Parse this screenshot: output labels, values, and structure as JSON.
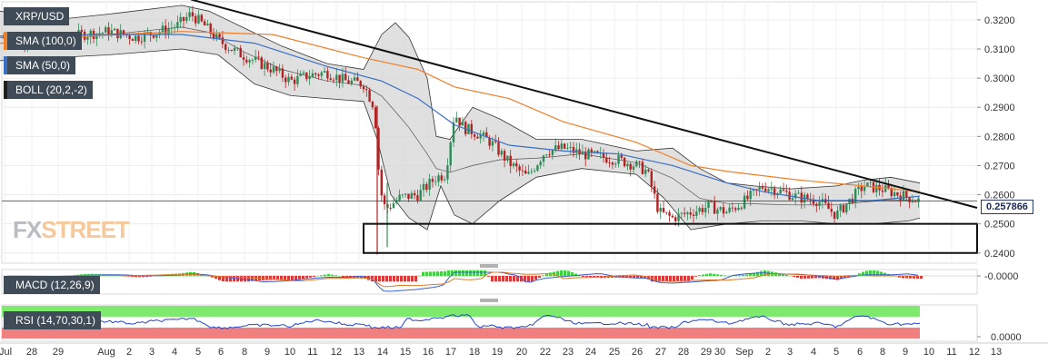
{
  "legends": {
    "symbol": "XRP/USD",
    "sma100": "SMA (100,0)",
    "sma50": "SMA (50,0)",
    "boll": "BOLL (20,2,-2)",
    "macd": "MACD (12,26,9)",
    "rsi": "RSI (14,70,30,1)"
  },
  "watermark": {
    "fx": "FX",
    "street": "STREET"
  },
  "last_price_label": "0.257866",
  "colors": {
    "sma100": "#f07f2a",
    "sma50": "#3b6fc4",
    "bull": "#2e8b57",
    "bear": "#b22222",
    "band_fill": "#d5d5d5",
    "rsi_over": "#7dea6d",
    "rsi_under": "#f08080"
  },
  "chart_data": {
    "type": "candlestick",
    "title": "XRP/USD",
    "ylim": [
      0.2365,
      0.3262
    ],
    "y_ticks": [
      "0.3200",
      "0.3100",
      "0.3000",
      "0.2900",
      "0.2800",
      "0.2700",
      "0.2600",
      "0.2500",
      "0.2400"
    ],
    "x_ticks": [
      "Jul",
      "28",
      "29",
      "Aug",
      "2",
      "3",
      "4",
      "5",
      "6",
      "8",
      "9",
      "10",
      "11",
      "12",
      "13",
      "14",
      "15",
      "16",
      "17",
      "18",
      "19",
      "20",
      "22",
      "23",
      "24",
      "25",
      "26",
      "27",
      "28",
      "29",
      "30",
      "Sep",
      "2",
      "3",
      "4",
      "5",
      "6",
      "8",
      "9",
      "10",
      "11",
      "12",
      "13"
    ],
    "last_price": 0.257866,
    "price_path": [
      [
        0,
        0.314
      ],
      [
        30,
        0.313
      ],
      [
        60,
        0.312
      ],
      [
        90,
        0.315
      ],
      [
        120,
        0.316
      ],
      [
        150,
        0.314
      ],
      [
        175,
        0.316
      ],
      [
        195,
        0.318
      ],
      [
        210,
        0.322
      ],
      [
        225,
        0.318
      ],
      [
        240,
        0.313
      ],
      [
        260,
        0.309
      ],
      [
        280,
        0.306
      ],
      [
        300,
        0.303
      ],
      [
        320,
        0.299
      ],
      [
        340,
        0.301
      ],
      [
        360,
        0.302
      ],
      [
        380,
        0.299
      ],
      [
        400,
        0.298
      ],
      [
        412,
        0.29
      ],
      [
        418,
        0.262
      ],
      [
        424,
        0.255
      ],
      [
        440,
        0.259
      ],
      [
        460,
        0.26
      ],
      [
        480,
        0.266
      ],
      [
        490,
        0.267
      ],
      [
        500,
        0.288
      ],
      [
        510,
        0.283
      ],
      [
        525,
        0.281
      ],
      [
        540,
        0.278
      ],
      [
        560,
        0.271
      ],
      [
        580,
        0.266
      ],
      [
        600,
        0.275
      ],
      [
        620,
        0.276
      ],
      [
        640,
        0.274
      ],
      [
        660,
        0.273
      ],
      [
        680,
        0.272
      ],
      [
        700,
        0.27
      ],
      [
        712,
        0.268
      ],
      [
        725,
        0.254
      ],
      [
        740,
        0.252
      ],
      [
        760,
        0.254
      ],
      [
        780,
        0.256
      ],
      [
        800,
        0.254
      ],
      [
        820,
        0.258
      ],
      [
        840,
        0.263
      ],
      [
        860,
        0.261
      ],
      [
        880,
        0.259
      ],
      [
        900,
        0.258
      ],
      [
        920,
        0.253
      ],
      [
        935,
        0.258
      ],
      [
        950,
        0.263
      ],
      [
        970,
        0.262
      ],
      [
        990,
        0.26
      ],
      [
        1012,
        0.2579
      ]
    ],
    "sma100_path": [
      [
        0,
        0.312
      ],
      [
        100,
        0.3145
      ],
      [
        200,
        0.316
      ],
      [
        300,
        0.315
      ],
      [
        400,
        0.307
      ],
      [
        460,
        0.303
      ],
      [
        500,
        0.297
      ],
      [
        560,
        0.293
      ],
      [
        620,
        0.285
      ],
      [
        700,
        0.278
      ],
      [
        760,
        0.27
      ],
      [
        800,
        0.268
      ],
      [
        880,
        0.265
      ],
      [
        950,
        0.263
      ],
      [
        1012,
        0.261
      ]
    ],
    "sma50_path": [
      [
        0,
        0.314
      ],
      [
        100,
        0.315
      ],
      [
        200,
        0.315
      ],
      [
        280,
        0.312
      ],
      [
        360,
        0.304
      ],
      [
        420,
        0.299
      ],
      [
        460,
        0.293
      ],
      [
        500,
        0.284
      ],
      [
        560,
        0.277
      ],
      [
        620,
        0.275
      ],
      [
        680,
        0.274
      ],
      [
        740,
        0.27
      ],
      [
        800,
        0.264
      ],
      [
        840,
        0.261
      ],
      [
        900,
        0.258
      ],
      [
        960,
        0.258
      ],
      [
        1012,
        0.2595
      ]
    ],
    "boll_upper": [
      [
        0,
        0.323
      ],
      [
        60,
        0.32
      ],
      [
        120,
        0.322
      ],
      [
        200,
        0.325
      ],
      [
        230,
        0.323
      ],
      [
        270,
        0.317
      ],
      [
        310,
        0.311
      ],
      [
        360,
        0.305
      ],
      [
        400,
        0.303
      ],
      [
        420,
        0.315
      ],
      [
        435,
        0.319
      ],
      [
        450,
        0.314
      ],
      [
        470,
        0.3
      ],
      [
        480,
        0.28
      ],
      [
        495,
        0.279
      ],
      [
        520,
        0.29
      ],
      [
        550,
        0.286
      ],
      [
        590,
        0.279
      ],
      [
        640,
        0.279
      ],
      [
        700,
        0.275
      ],
      [
        740,
        0.276
      ],
      [
        770,
        0.269
      ],
      [
        800,
        0.264
      ],
      [
        830,
        0.263
      ],
      [
        870,
        0.262
      ],
      [
        920,
        0.263
      ],
      [
        950,
        0.265
      ],
      [
        980,
        0.266
      ],
      [
        1012,
        0.264
      ]
    ],
    "boll_lower": [
      [
        0,
        0.306
      ],
      [
        60,
        0.307
      ],
      [
        120,
        0.308
      ],
      [
        200,
        0.31
      ],
      [
        240,
        0.308
      ],
      [
        280,
        0.298
      ],
      [
        320,
        0.294
      ],
      [
        360,
        0.293
      ],
      [
        400,
        0.292
      ],
      [
        415,
        0.279
      ],
      [
        430,
        0.26
      ],
      [
        450,
        0.252
      ],
      [
        470,
        0.248
      ],
      [
        485,
        0.263
      ],
      [
        500,
        0.253
      ],
      [
        520,
        0.25
      ],
      [
        550,
        0.258
      ],
      [
        590,
        0.266
      ],
      [
        640,
        0.269
      ],
      [
        700,
        0.267
      ],
      [
        730,
        0.259
      ],
      [
        760,
        0.248
      ],
      [
        800,
        0.25
      ],
      [
        840,
        0.251
      ],
      [
        880,
        0.251
      ],
      [
        920,
        0.25
      ],
      [
        960,
        0.25
      ],
      [
        1000,
        0.251
      ],
      [
        1012,
        0.252
      ]
    ],
    "trendline": [
      [
        210,
        0.327
      ],
      [
        1075,
        0.2555
      ]
    ],
    "support_box": {
      "x_start": 400,
      "x_end": 1075,
      "upper": 0.25,
      "lower": 0.24
    },
    "macd": {
      "label": "MACD (12,26,9)",
      "y_tick": "-0.0000",
      "zero_level": 0.0
    },
    "rsi": {
      "label": "RSI (14,70,30,1)",
      "y_tick": "0.0000",
      "overbought": 70,
      "oversold": 30
    }
  }
}
